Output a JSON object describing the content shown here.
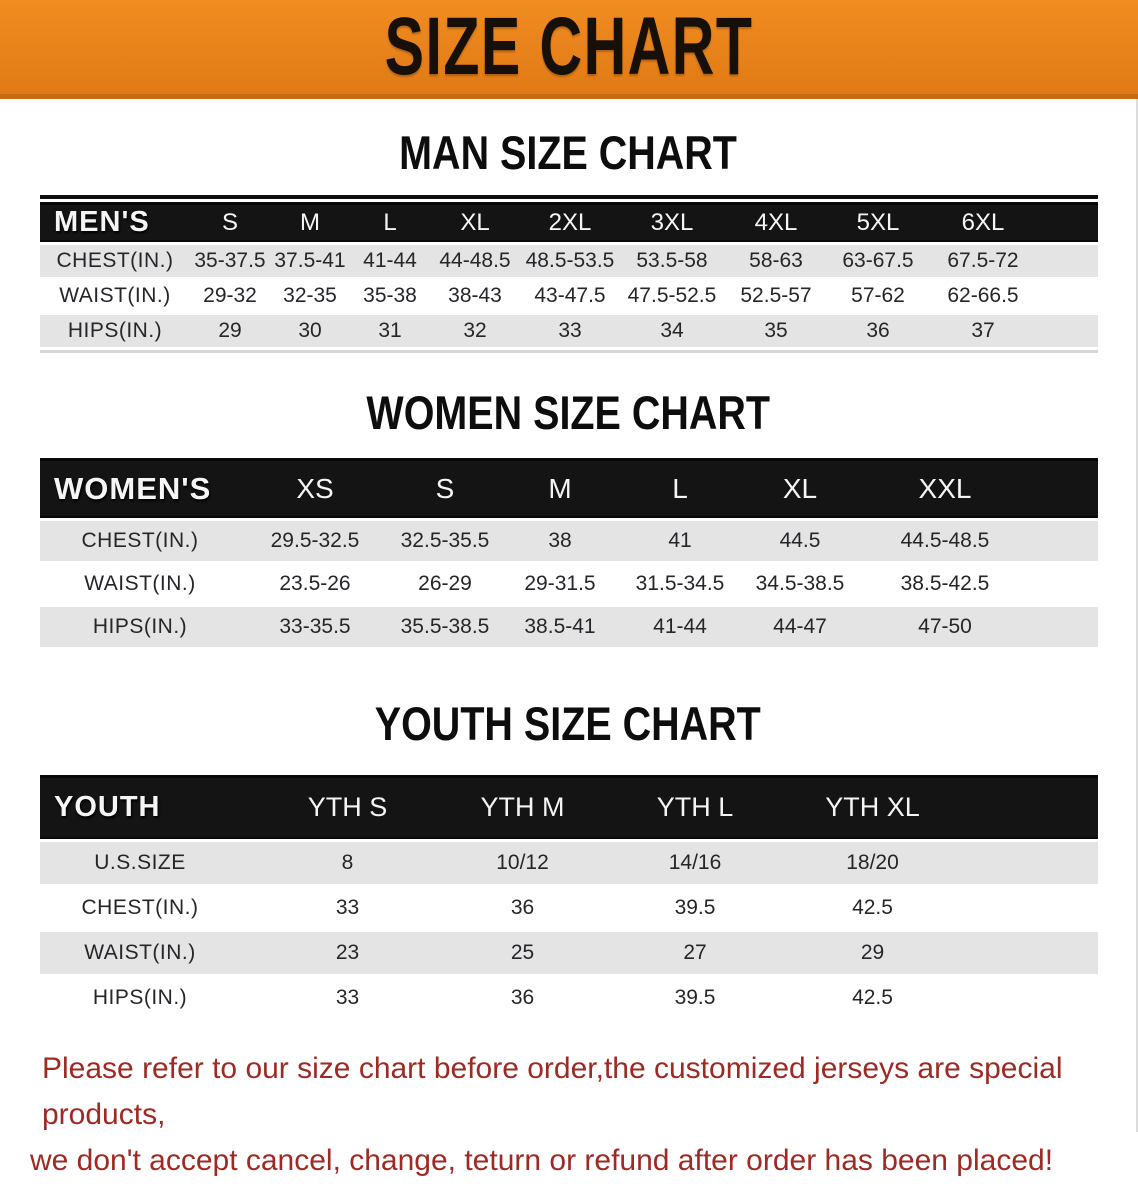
{
  "banner": {
    "title": "SIZE CHART",
    "bg_color": "#e8821b",
    "text_color": "#161008"
  },
  "sections": [
    {
      "heading": "MAN SIZE CHART",
      "header_label": "MEN'S",
      "columns": [
        "S",
        "M",
        "L",
        "XL",
        "2XL",
        "3XL",
        "4XL",
        "5XL",
        "6XL"
      ],
      "rows": [
        {
          "label": "CHEST(IN.)",
          "values": [
            "35-37.5",
            "37.5-41",
            "41-44",
            "44-48.5",
            "48.5-53.5",
            "53.5-58",
            "58-63",
            "63-67.5",
            "67.5-72"
          ]
        },
        {
          "label": "WAIST(IN.)",
          "values": [
            "29-32",
            "32-35",
            "35-38",
            "38-43",
            "43-47.5",
            "47.5-52.5",
            "52.5-57",
            "57-62",
            "62-66.5"
          ]
        },
        {
          "label": "HIPS(IN.)",
          "values": [
            "29",
            "30",
            "31",
            "32",
            "33",
            "34",
            "35",
            "36",
            "37"
          ]
        }
      ]
    },
    {
      "heading": "WOMEN SIZE CHART",
      "header_label": "WOMEN'S",
      "columns": [
        "XS",
        "S",
        "M",
        "L",
        "XL",
        "XXL"
      ],
      "rows": [
        {
          "label": "CHEST(IN.)",
          "values": [
            "29.5-32.5",
            "32.5-35.5",
            "38",
            "41",
            "44.5",
            "44.5-48.5"
          ]
        },
        {
          "label": "WAIST(IN.)",
          "values": [
            "23.5-26",
            "26-29",
            "29-31.5",
            "31.5-34.5",
            "34.5-38.5",
            "38.5-42.5"
          ]
        },
        {
          "label": "HIPS(IN.)",
          "values": [
            "33-35.5",
            "35.5-38.5",
            "38.5-41",
            "41-44",
            "44-47",
            "47-50"
          ]
        }
      ]
    },
    {
      "heading": "YOUTH SIZE CHART",
      "header_label": "YOUTH",
      "columns": [
        "YTH S",
        "YTH M",
        "YTH L",
        "YTH XL"
      ],
      "rows": [
        {
          "label": "U.S.SIZE",
          "values": [
            "8",
            "10/12",
            "14/16",
            "18/20"
          ]
        },
        {
          "label": "CHEST(IN.)",
          "values": [
            "33",
            "36",
            "39.5",
            "42.5"
          ]
        },
        {
          "label": "WAIST(IN.)",
          "values": [
            "23",
            "25",
            "27",
            "29"
          ]
        },
        {
          "label": "HIPS(IN.)",
          "values": [
            "33",
            "36",
            "39.5",
            "42.5"
          ]
        }
      ]
    }
  ],
  "footer": {
    "line1": "Please refer to our size chart before order,the customized jerseys are special products,",
    "line2": "we don't accept cancel, change, teturn or refund after order has been placed!",
    "text_color": "#9e2a23"
  },
  "colors": {
    "banner_orange": "#e8821b",
    "banner_edge": "#c76a10",
    "table_header_black": "#141414",
    "stripe_gray": "#e4e4e4",
    "footer_red": "#9e2a23"
  }
}
